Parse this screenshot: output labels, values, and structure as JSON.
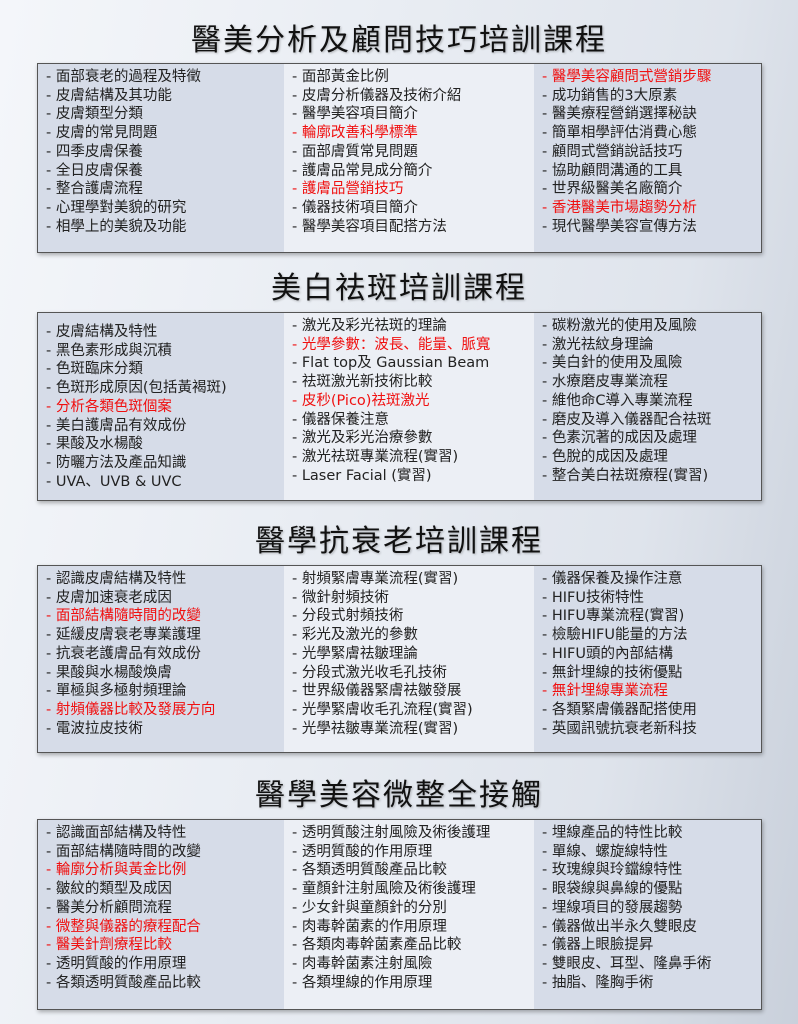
{
  "sections": [
    {
      "title": "醫美分析及顧問技巧培訓課程",
      "columns": [
        [
          {
            "t": "- 面部衰老的過程及特徵"
          },
          {
            "t": "- 皮膚結構及其功能"
          },
          {
            "t": "- 皮膚類型分類"
          },
          {
            "t": "- 皮膚的常見問題"
          },
          {
            "t": "- 四季皮膚保養"
          },
          {
            "t": "- 全日皮膚保養"
          },
          {
            "t": "- 整合護膚流程"
          },
          {
            "t": "- 心理學對美貌的研究"
          },
          {
            "t": "- 相學上的美貌及功能"
          }
        ],
        [
          {
            "t": "- 面部黃金比例"
          },
          {
            "t": "- 皮膚分析儀器及技術介紹"
          },
          {
            "t": "- 醫學美容項目簡介"
          },
          {
            "t": "- 輪廓改善科學標準",
            "red": true
          },
          {
            "t": "- 面部膚質常見問題"
          },
          {
            "t": "- 護膚品常見成分簡介"
          },
          {
            "t": "- 護膚品營銷技巧",
            "red": true
          },
          {
            "t": "- 儀器技術項目簡介"
          },
          {
            "t": "- 醫學美容項目配搭方法"
          }
        ],
        [
          {
            "t": "- 醫學美容顧問式營銷步驟",
            "red": true
          },
          {
            "t": "- 成功銷售的3大原素"
          },
          {
            "t": "- 醫美療程營銷選擇秘訣"
          },
          {
            "t": "- 簡單相學評估消費心態"
          },
          {
            "t": "- 顧問式營銷說話技巧"
          },
          {
            "t": "- 協助顧問溝通的工具"
          },
          {
            "t": "- 世界級醫美名廠簡介"
          },
          {
            "t": "- 香港醫美市場趨勢分析",
            "red": true
          },
          {
            "t": "- 現代醫學美容宣傳方法"
          }
        ]
      ]
    },
    {
      "title": "美白祛斑培訓課程",
      "columns": [
        [
          {
            "t": "- 皮膚結構及特性"
          },
          {
            "t": "- 黑色素形成與沉積"
          },
          {
            "t": "- 色斑臨床分類"
          },
          {
            "t": "- 色斑形成原因(包括黃褐斑)"
          },
          {
            "t": "- 分析各類色斑個案",
            "red": true
          },
          {
            "t": "- 美白護膚品有效成份"
          },
          {
            "t": "- 果酸及水楊酸"
          },
          {
            "t": "- 防曬方法及產品知識"
          },
          {
            "t": "- UVA、UVB & UVC"
          }
        ],
        [
          {
            "t": "- 激光及彩光祛斑的理論"
          },
          {
            "t": "- 光學參數：波長、能量、脈寬",
            "red": true
          },
          {
            "t": "- Flat top及 Gaussian Beam"
          },
          {
            "t": "- 祛斑激光新技術比較"
          },
          {
            "t": "- 皮秒(Pico)祛斑激光",
            "red": true
          },
          {
            "t": "- 儀器保養注意"
          },
          {
            "t": "- 激光及彩光治療參數"
          },
          {
            "t": "- 激光祛斑專業流程(實習)"
          },
          {
            "t": "- Laser Facial (實習)"
          }
        ],
        [
          {
            "t": "- 碳粉激光的使用及風險"
          },
          {
            "t": "- 激光祛紋身理論"
          },
          {
            "t": "- 美白針的使用及風險"
          },
          {
            "t": "- 水療磨皮專業流程"
          },
          {
            "t": "- 維他命C導入專業流程"
          },
          {
            "t": "- 磨皮及導入儀器配合祛斑"
          },
          {
            "t": "- 色素沉著的成因及處理"
          },
          {
            "t": "- 色脫的成因及處理"
          },
          {
            "t": "- 整合美白祛斑療程(實習)"
          }
        ]
      ]
    },
    {
      "title": "醫學抗衰老培訓課程",
      "columns": [
        [
          {
            "t": "- 認識皮膚結構及特性"
          },
          {
            "t": "- 皮膚加速衰老成因"
          },
          {
            "t": "- 面部結構隨時間的改變",
            "red": true
          },
          {
            "t": "- 延緩皮膚衰老專業護理"
          },
          {
            "t": "- 抗衰老護膚品有效成份"
          },
          {
            "t": "- 果酸與水楊酸煥膚"
          },
          {
            "t": "- 單極與多極射頻理論"
          },
          {
            "t": "- 射頻儀器比較及發展方向",
            "red": true
          },
          {
            "t": "- 電波拉皮技術"
          }
        ],
        [
          {
            "t": "- 射頻緊膚專業流程(實習)"
          },
          {
            "t": "- 微針射頻技術"
          },
          {
            "t": "- 分段式射頻技術"
          },
          {
            "t": "- 彩光及激光的參數"
          },
          {
            "t": "- 光學緊膚祛皺理論"
          },
          {
            "t": "- 分段式激光收毛孔技術"
          },
          {
            "t": "- 世界級儀器緊膚祛皺發展"
          },
          {
            "t": "- 光學緊膚收毛孔流程(實習)"
          },
          {
            "t": "- 光學祛皺專業流程(實習)"
          }
        ],
        [
          {
            "t": "- 儀器保養及操作注意"
          },
          {
            "t": "- HIFU技術特性"
          },
          {
            "t": "- HIFU專業流程(實習)"
          },
          {
            "t": "- 檢驗HIFU能量的方法"
          },
          {
            "t": "- HIFU頭的內部結構"
          },
          {
            "t": "- 無針埋線的技術優點"
          },
          {
            "t": "- 無針埋線專業流程",
            "red": true
          },
          {
            "t": "- 各類緊膚儀器配搭使用"
          },
          {
            "t": "- 英國訊號抗衰老新科技"
          }
        ]
      ]
    },
    {
      "title": "醫學美容微整全接觸",
      "columns": [
        [
          {
            "t": "- 認識面部結構及特性"
          },
          {
            "t": "- 面部結構隨時間的改變"
          },
          {
            "t": "- 輪廓分析與黃金比例",
            "red": true
          },
          {
            "t": "- 皺紋的類型及成因"
          },
          {
            "t": "- 醫美分析顧問流程"
          },
          {
            "t": "- 微整與儀器的療程配合",
            "red": true
          },
          {
            "t": "- 醫美針劑療程比較",
            "red": true
          },
          {
            "t": "- 透明質酸的作用原理"
          },
          {
            "t": "- 各類透明質酸產品比較"
          }
        ],
        [
          {
            "t": "- 透明質酸注射風險及術後護理"
          },
          {
            "t": "- 透明質酸的作用原理"
          },
          {
            "t": "- 各類透明質酸產品比較"
          },
          {
            "t": "- 童顏針注射風險及術後護理"
          },
          {
            "t": "- 少女針與童顏針的分別"
          },
          {
            "t": "- 肉毒幹菌素的作用原理"
          },
          {
            "t": "- 各類肉毒幹菌素產品比較"
          },
          {
            "t": "- 肉毒幹菌素注射風險"
          },
          {
            "t": "- 各類埋線的作用原理"
          }
        ],
        [
          {
            "t": "- 埋線產品的特性比較"
          },
          {
            "t": "- 單線、螺旋線特性"
          },
          {
            "t": "- 玫瑰線與玲鐺線特性"
          },
          {
            "t": "- 眼袋線與鼻線的優點"
          },
          {
            "t": "- 埋線項目的發展趨勢"
          },
          {
            "t": "- 儀器做出半永久雙眼皮"
          },
          {
            "t": "- 儀器上眼臉提昇"
          },
          {
            "t": "- 雙眼皮、耳型、隆鼻手術"
          },
          {
            "t": "- 抽脂、隆胸手術"
          }
        ]
      ]
    }
  ],
  "colors": {
    "highlight": "#f01010",
    "text": "#222222"
  }
}
